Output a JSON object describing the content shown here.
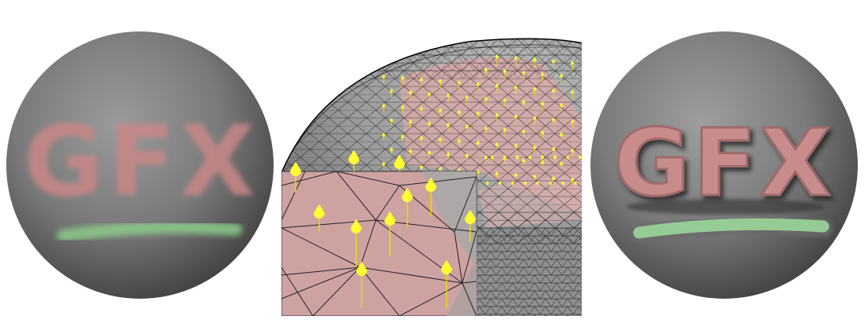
{
  "left_sphere": {
    "label": "GFX",
    "text_color": "#c98686",
    "stripe_color": "#8ccc8c"
  },
  "right_sphere": {
    "label": "GFX",
    "text_color": "#c98c8c",
    "stripe_color": "#9ad69a"
  },
  "colors": {
    "sphere_gray": "#7d7d7d",
    "mesh_line": "#000000",
    "pink_region": "#c9a0a0",
    "vector_yellow": "#ffff33"
  }
}
